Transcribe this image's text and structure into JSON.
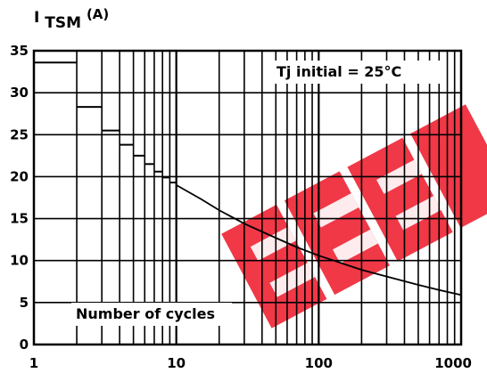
{
  "chart_data": {
    "type": "line",
    "ylabel_main": "I",
    "ylabel_sub": "TSM",
    "ylabel_unit": "(A)",
    "xscale": "log",
    "xlim": [
      1,
      1000
    ],
    "ylim": [
      0,
      35
    ],
    "grid": true,
    "x_ticks": [
      "1",
      "10",
      "100",
      "1000"
    ],
    "y_ticks": [
      "0",
      "5",
      "10",
      "15",
      "20",
      "25",
      "30",
      "35"
    ],
    "condition_label": "Tj initial = 25°C",
    "x_annotation": "Number of cycles",
    "steps": [
      {
        "x_start": 1,
        "x_end": 2,
        "y": 33.6
      },
      {
        "x_start": 2,
        "x_end": 3,
        "y": 28.3
      },
      {
        "x_start": 3,
        "x_end": 4,
        "y": 25.5
      },
      {
        "x_start": 4,
        "x_end": 5,
        "y": 23.8
      },
      {
        "x_start": 5,
        "x_end": 6,
        "y": 22.5
      },
      {
        "x_start": 6,
        "x_end": 7,
        "y": 21.5
      },
      {
        "x_start": 7,
        "x_end": 8,
        "y": 20.6
      },
      {
        "x_start": 8,
        "x_end": 9,
        "y": 19.9
      },
      {
        "x_start": 9,
        "x_end": 10,
        "y": 19.3
      }
    ],
    "curve": [
      {
        "x": 10,
        "y": 19.0
      },
      {
        "x": 15,
        "y": 17.3
      },
      {
        "x": 20,
        "y": 16.0
      },
      {
        "x": 30,
        "y": 14.4
      },
      {
        "x": 50,
        "y": 12.7
      },
      {
        "x": 70,
        "y": 11.6
      },
      {
        "x": 100,
        "y": 10.6
      },
      {
        "x": 150,
        "y": 9.6
      },
      {
        "x": 200,
        "y": 8.9
      },
      {
        "x": 300,
        "y": 8.1
      },
      {
        "x": 500,
        "y": 7.1
      },
      {
        "x": 700,
        "y": 6.5
      },
      {
        "x": 1000,
        "y": 5.9
      }
    ],
    "watermark_color": "#ee2233"
  }
}
